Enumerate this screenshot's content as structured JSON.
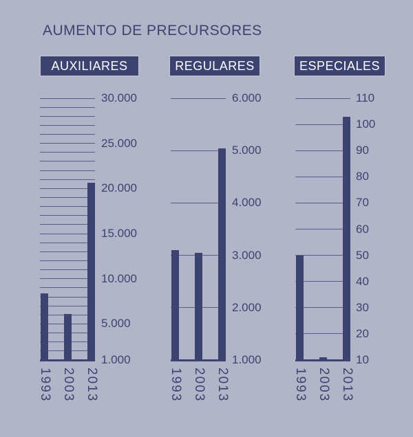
{
  "title": "AUMENTO DE PRECURSORES",
  "colors": {
    "background": "#b2b4c7",
    "ink": "#3c4370",
    "gridline": "#565c85",
    "badge_text": "#ffffff",
    "badge_border": "#c6c8d6"
  },
  "chart_data": [
    {
      "type": "bar",
      "header": "AUXILIARES",
      "categories": [
        "1993",
        "2003",
        "2013"
      ],
      "values": [
        8400,
        6100,
        20600
      ],
      "ymin": 1000,
      "ymax": 30000,
      "grid_step": 1000,
      "legend": "none",
      "grid": true,
      "ticks": [
        {
          "value": 30000,
          "label": "30.000"
        },
        {
          "value": 25000,
          "label": "25.000"
        },
        {
          "value": 20000,
          "label": "20.000"
        },
        {
          "value": 15000,
          "label": "15.000"
        },
        {
          "value": 10000,
          "label": "10.000"
        },
        {
          "value": 5000,
          "label": "5.000"
        },
        {
          "value": 1000,
          "label": "1.000"
        }
      ]
    },
    {
      "type": "bar",
      "header": "REGULARES",
      "categories": [
        "1993",
        "2003",
        "2013"
      ],
      "values": [
        3100,
        3050,
        5040
      ],
      "ymin": 1000,
      "ymax": 6000,
      "grid_step": 1000,
      "legend": "none",
      "grid": true,
      "ticks": [
        {
          "value": 6000,
          "label": "6.000"
        },
        {
          "value": 5000,
          "label": "5.000"
        },
        {
          "value": 4000,
          "label": "4.000"
        },
        {
          "value": 3000,
          "label": "3.000"
        },
        {
          "value": 2000,
          "label": "2.000"
        },
        {
          "value": 1000,
          "label": "1.000"
        }
      ]
    },
    {
      "type": "bar",
      "header": "ESPECIALES",
      "categories": [
        "1993",
        "2003",
        "2013"
      ],
      "values": [
        50,
        11,
        103
      ],
      "ymin": 10,
      "ymax": 110,
      "grid_step": 10,
      "legend": "none",
      "grid": true,
      "ticks": [
        {
          "value": 110,
          "label": "110"
        },
        {
          "value": 100,
          "label": "100"
        },
        {
          "value": 90,
          "label": "90"
        },
        {
          "value": 80,
          "label": "80"
        },
        {
          "value": 70,
          "label": "70"
        },
        {
          "value": 60,
          "label": "60"
        },
        {
          "value": 50,
          "label": "50"
        },
        {
          "value": 40,
          "label": "40"
        },
        {
          "value": 30,
          "label": "30"
        },
        {
          "value": 20,
          "label": "20"
        },
        {
          "value": 10,
          "label": "10"
        }
      ]
    }
  ]
}
